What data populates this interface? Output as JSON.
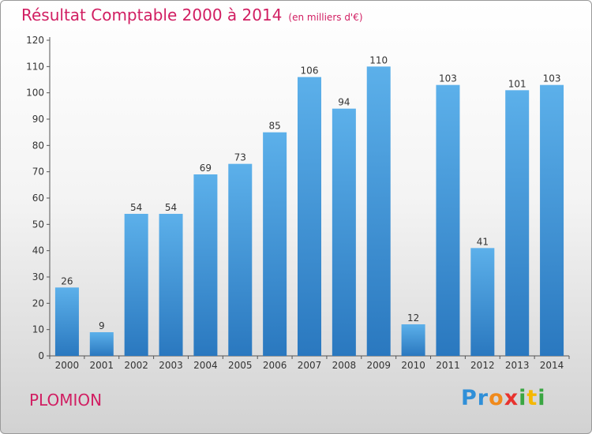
{
  "header": {
    "title": "Résultat Comptable 2000 à 2014",
    "subtitle": "(en milliers d'€)"
  },
  "footer": {
    "place": "PLOMION",
    "logo": {
      "letters": [
        "P",
        "r",
        "o",
        "x",
        "i",
        "t",
        "i"
      ],
      "colors": [
        "#2f8fd8",
        "#2f8fd8",
        "#f08a1c",
        "#e8322e",
        "#3aa642",
        "#f5b800",
        "#3aa642"
      ]
    }
  },
  "chart_data": {
    "type": "bar",
    "categories": [
      "2000",
      "2001",
      "2002",
      "2003",
      "2004",
      "2005",
      "2006",
      "2007",
      "2008",
      "2009",
      "2010",
      "2011",
      "2012",
      "2013",
      "2014"
    ],
    "values": [
      26,
      9,
      54,
      54,
      69,
      73,
      85,
      106,
      94,
      110,
      12,
      103,
      41,
      101,
      103
    ],
    "title": "Résultat Comptable 2000 à 2014",
    "subtitle": "(en milliers d'€)",
    "xlabel": "",
    "ylabel": "",
    "ylim": [
      0,
      120
    ],
    "yticks": [
      0,
      10,
      20,
      30,
      40,
      50,
      60,
      70,
      80,
      90,
      100,
      110,
      120
    ],
    "grid": false,
    "bar_color": "#3a93d8"
  }
}
